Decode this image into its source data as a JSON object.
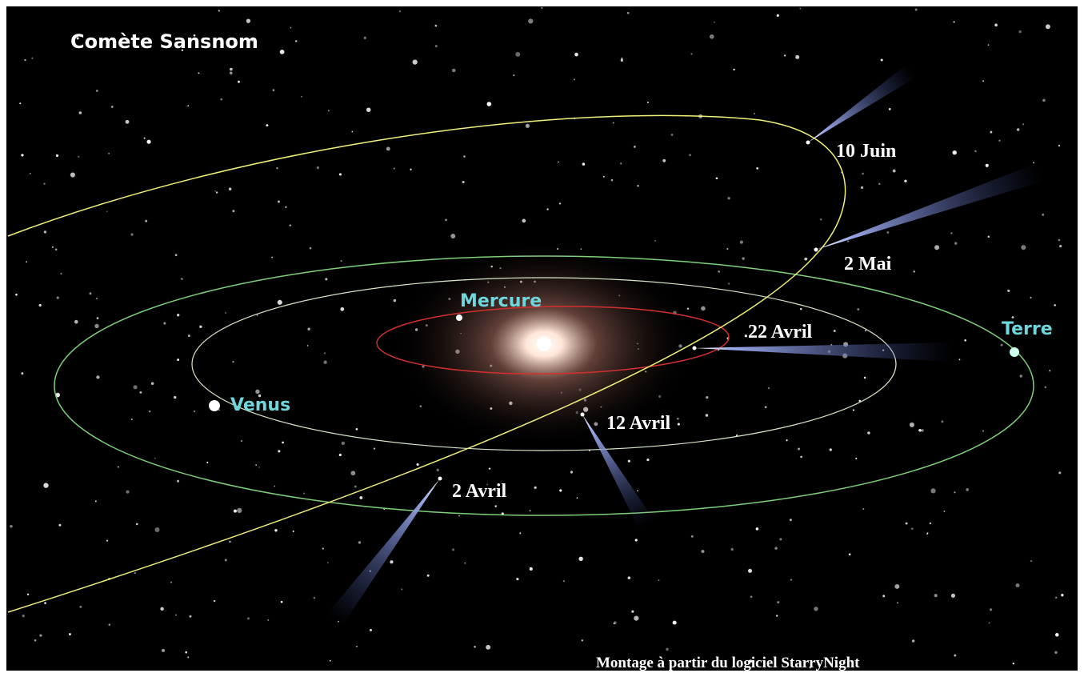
{
  "title": "Comète Sansnom",
  "planets": [
    {
      "label": "Mercure"
    },
    {
      "label": "Venus"
    },
    {
      "label": "Terre"
    }
  ],
  "comet_positions": [
    {
      "label": "10 Juin"
    },
    {
      "label": "2 Mai"
    },
    {
      "label": "22 Avril"
    },
    {
      "label": "12 Avril"
    },
    {
      "label": "2 Avril"
    }
  ],
  "credit": "Montage à partir du logiciel StarryNight"
}
